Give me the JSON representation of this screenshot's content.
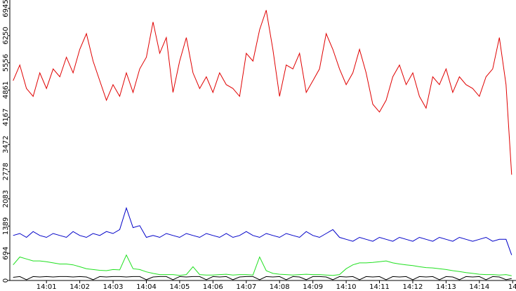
{
  "chart_data": {
    "type": "line",
    "x": [
      0,
      0.2,
      0.4,
      0.6,
      0.8,
      1,
      1.2,
      1.4,
      1.6,
      1.8,
      2,
      2.2,
      2.4,
      2.6,
      2.8,
      3,
      3.2,
      3.4,
      3.6,
      3.8,
      4,
      4.2,
      4.4,
      4.6,
      4.8,
      5,
      5.2,
      5.4,
      5.6,
      5.8,
      6,
      6.2,
      6.4,
      6.6,
      6.8,
      7,
      7.2,
      7.4,
      7.6,
      7.8,
      8,
      8.2,
      8.4,
      8.6,
      8.8,
      9,
      9.2,
      9.4,
      9.6,
      9.8,
      10,
      10.2,
      10.4,
      10.6,
      10.8,
      11,
      11.2,
      11.4,
      11.6,
      11.8,
      12,
      12.2,
      12.4,
      12.6,
      12.8,
      13,
      13.2,
      13.4,
      13.6,
      13.8,
      14,
      14.2,
      14.4,
      14.6,
      14.8,
      14.97
    ],
    "series": [
      {
        "color": "#e00000",
        "values": [
          5100,
          5500,
          4900,
          4700,
          5300,
          4900,
          5400,
          5200,
          5700,
          5300,
          5900,
          6300,
          5600,
          5100,
          4600,
          5000,
          4700,
          5300,
          4800,
          5400,
          5700,
          6600,
          5800,
          6200,
          4800,
          5600,
          6200,
          5300,
          4900,
          5200,
          4800,
          5300,
          5000,
          4900,
          4700,
          5800,
          5600,
          6400,
          6900,
          5900,
          4700,
          5500,
          5400,
          5800,
          4800,
          5100,
          5400,
          6300,
          5900,
          5400,
          5000,
          5300,
          5900,
          5300,
          4500,
          4300,
          4600,
          5200,
          5500,
          5000,
          5300,
          4700,
          4400,
          5200,
          5000,
          5400,
          4800,
          5200,
          5000,
          4900,
          4700,
          5200,
          5400,
          6200,
          5000,
          2700
        ]
      },
      {
        "color": "#0000c8",
        "values": [
          1150,
          1200,
          1100,
          1250,
          1150,
          1100,
          1200,
          1150,
          1100,
          1250,
          1150,
          1100,
          1200,
          1150,
          1250,
          1200,
          1300,
          1850,
          1350,
          1400,
          1100,
          1150,
          1100,
          1200,
          1150,
          1100,
          1200,
          1150,
          1100,
          1200,
          1150,
          1100,
          1200,
          1100,
          1150,
          1250,
          1150,
          1100,
          1200,
          1150,
          1100,
          1200,
          1150,
          1100,
          1250,
          1150,
          1100,
          1200,
          1300,
          1100,
          1050,
          1000,
          1100,
          1050,
          1000,
          1100,
          1050,
          1000,
          1100,
          1050,
          1000,
          1100,
          1050,
          1000,
          1100,
          1050,
          1000,
          1100,
          1050,
          1000,
          1050,
          1100,
          1000,
          1050,
          1050,
          650
        ]
      },
      {
        "color": "#20e020",
        "values": [
          400,
          600,
          550,
          500,
          500,
          480,
          450,
          420,
          420,
          400,
          350,
          300,
          280,
          260,
          250,
          280,
          270,
          650,
          300,
          280,
          220,
          180,
          150,
          150,
          150,
          130,
          150,
          350,
          150,
          140,
          140,
          150,
          160,
          140,
          150,
          150,
          140,
          600,
          250,
          180,
          160,
          150,
          140,
          150,
          160,
          150,
          150,
          140,
          130,
          150,
          300,
          400,
          450,
          450,
          460,
          480,
          500,
          450,
          420,
          400,
          380,
          350,
          330,
          320,
          300,
          280,
          250,
          230,
          200,
          180,
          160,
          150,
          150,
          140,
          150,
          120
        ]
      },
      {
        "color": "#000000",
        "values": [
          80,
          100,
          20,
          100,
          90,
          100,
          90,
          100,
          100,
          90,
          100,
          90,
          20,
          100,
          90,
          100,
          100,
          90,
          100,
          100,
          20,
          90,
          100,
          100,
          20,
          100,
          90,
          100,
          100,
          20,
          100,
          90,
          100,
          20,
          90,
          100,
          100,
          20,
          100,
          90,
          100,
          20,
          100,
          90,
          20,
          100,
          100,
          90,
          20,
          100,
          90,
          100,
          20,
          100,
          90,
          100,
          20,
          100,
          90,
          100,
          20,
          100,
          90,
          100,
          20,
          100,
          90,
          20,
          100,
          90,
          100,
          20,
          100,
          90,
          20,
          50
        ]
      }
    ],
    "xlim": [
      -0.1,
      15.1
    ],
    "xticks": [
      {
        "value": 1,
        "label": "14:01"
      },
      {
        "value": 2,
        "label": "14:02"
      },
      {
        "value": 3,
        "label": "14:03"
      },
      {
        "value": 4,
        "label": "14:04"
      },
      {
        "value": 5,
        "label": "14:05"
      },
      {
        "value": 6,
        "label": "14:06"
      },
      {
        "value": 7,
        "label": "14:07"
      },
      {
        "value": 8,
        "label": "14:08"
      },
      {
        "value": 9,
        "label": "14:09"
      },
      {
        "value": 10,
        "label": "14:10"
      },
      {
        "value": 11,
        "label": "14:11"
      },
      {
        "value": 12,
        "label": "14:12"
      },
      {
        "value": 13,
        "label": "14:13"
      },
      {
        "value": 14,
        "label": "14:14"
      },
      {
        "value": 15,
        "label": "14"
      }
    ],
    "ylim": [
      0,
      6945
    ],
    "yticks": [
      0,
      694,
      1389,
      2083,
      2778,
      3472,
      4167,
      4861,
      5556,
      6250,
      6945
    ],
    "grid": false
  }
}
